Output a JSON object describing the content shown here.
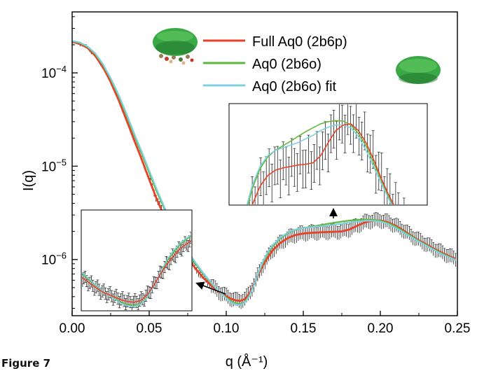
{
  "figure_label": "Figure 7",
  "colors": {
    "full": "#e8412a",
    "aq0": "#5fb83e",
    "fit": "#7fcfe0",
    "data": "#222222",
    "axis": "#000000",
    "protein_green": "#39a845",
    "protein_dark": "#1e6b26"
  },
  "icons": [
    "protein-complex-icon",
    "protein-ring-icon"
  ],
  "chart_data": {
    "type": "line",
    "xlabel": "q (Å⁻¹)",
    "ylabel": "I(q)",
    "xlim": [
      0,
      0.25
    ],
    "ylim": [
      2.5e-07,
      0.00045
    ],
    "yscale": "log",
    "x_ticks": [
      0,
      0.05,
      0.1,
      0.15,
      0.2,
      0.25
    ],
    "x_tick_labels": [
      "0.00",
      "0.05",
      "0.10",
      "0.15",
      "0.20",
      "0.25"
    ],
    "y_ticks": [
      1e-06,
      1e-05,
      0.0001
    ],
    "y_tick_labels": [
      "10−6",
      "10−5",
      "10−4"
    ],
    "legend": {
      "placement": "top-right",
      "entries": [
        "Full Aq0 (2b6p)",
        "Aq0 (2b6o)",
        "Aq0 (2b6o) fit"
      ]
    },
    "series": [
      {
        "name": "Full Aq0 (2b6p)",
        "color": "#e8412a",
        "x": [
          0,
          0.005,
          0.01,
          0.015,
          0.02,
          0.025,
          0.03,
          0.035,
          0.04,
          0.045,
          0.05,
          0.055,
          0.06,
          0.065,
          0.07,
          0.075,
          0.08,
          0.085,
          0.09,
          0.095,
          0.1,
          0.103,
          0.106,
          0.109,
          0.112,
          0.115,
          0.118,
          0.121,
          0.124,
          0.127,
          0.13,
          0.135,
          0.14,
          0.145,
          0.15,
          0.155,
          0.16,
          0.165,
          0.17,
          0.175,
          0.18,
          0.185,
          0.19,
          0.195,
          0.2,
          0.205,
          0.21,
          0.215,
          0.22,
          0.225,
          0.23,
          0.235,
          0.24,
          0.245,
          0.25
        ],
        "y": [
          0.000215,
          0.000205,
          0.000185,
          0.000152,
          0.000115,
          8e-05,
          5.2e-05,
          3.2e-05,
          1.95e-05,
          1.2e-05,
          7.2e-06,
          4.4e-06,
          2.85e-06,
          1.95e-06,
          1.4e-06,
          1.05e-06,
          8e-07,
          6.4e-07,
          5.3e-07,
          4.5e-07,
          4.05e-07,
          3.8e-07,
          3.65e-07,
          3.6e-07,
          3.75e-07,
          4.3e-07,
          5.4e-07,
          7e-07,
          8.8e-07,
          1.05e-06,
          1.25e-06,
          1.5e-06,
          1.7e-06,
          1.83e-06,
          1.9e-06,
          1.93e-06,
          1.95e-06,
          1.97e-06,
          1.98e-06,
          2e-06,
          2.1e-06,
          2.3e-06,
          2.5e-06,
          2.6e-06,
          2.62e-06,
          2.5e-06,
          2.3e-06,
          2.05e-06,
          1.8e-06,
          1.6e-06,
          1.45e-06,
          1.3e-06,
          1.18e-06,
          1.08e-06,
          1e-06
        ]
      },
      {
        "name": "Aq0 (2b6o)",
        "color": "#5fb83e",
        "x": [
          0,
          0.005,
          0.01,
          0.015,
          0.02,
          0.025,
          0.03,
          0.035,
          0.04,
          0.045,
          0.05,
          0.055,
          0.06,
          0.065,
          0.07,
          0.075,
          0.08,
          0.085,
          0.09,
          0.095,
          0.1,
          0.103,
          0.106,
          0.109,
          0.112,
          0.115,
          0.118,
          0.121,
          0.124,
          0.127,
          0.13,
          0.135,
          0.14,
          0.145,
          0.15,
          0.155,
          0.16,
          0.165,
          0.17,
          0.175,
          0.18,
          0.185,
          0.19,
          0.195,
          0.2,
          0.205,
          0.21,
          0.215,
          0.22,
          0.225,
          0.23,
          0.235,
          0.24,
          0.245,
          0.25
        ],
        "y": [
          0.000218,
          0.00021,
          0.00019,
          0.00016,
          0.000122,
          8.6e-05,
          5.7e-05,
          3.6e-05,
          2.2e-05,
          1.38e-05,
          8.5e-06,
          5.3e-06,
          3.45e-06,
          2.35e-06,
          1.65e-06,
          1.2e-06,
          9e-07,
          7e-07,
          5.6e-07,
          4.6e-07,
          3.9e-07,
          3.6e-07,
          3.4e-07,
          3.35e-07,
          3.5e-07,
          4.1e-07,
          5.3e-07,
          7.2e-07,
          9.4e-07,
          1.15e-06,
          1.38e-06,
          1.68e-06,
          1.92e-06,
          2.08e-06,
          2.18e-06,
          2.25e-06,
          2.32e-06,
          2.4e-06,
          2.48e-06,
          2.55e-06,
          2.62e-06,
          2.66e-06,
          2.68e-06,
          2.67e-06,
          2.6e-06,
          2.45e-06,
          2.25e-06,
          2e-06,
          1.78e-06,
          1.58e-06,
          1.42e-06,
          1.28e-06,
          1.16e-06,
          1.06e-06,
          9.8e-07
        ]
      },
      {
        "name": "Aq0 (2b6o) fit",
        "color": "#7fcfe0",
        "x": [
          0,
          0.005,
          0.01,
          0.015,
          0.02,
          0.025,
          0.03,
          0.035,
          0.04,
          0.045,
          0.05,
          0.055,
          0.06,
          0.065,
          0.07,
          0.075,
          0.08,
          0.085,
          0.09,
          0.095,
          0.1,
          0.103,
          0.106,
          0.109,
          0.112,
          0.115,
          0.118,
          0.121,
          0.124,
          0.127,
          0.13,
          0.135,
          0.14,
          0.145,
          0.15,
          0.155,
          0.16,
          0.165,
          0.17,
          0.175,
          0.18,
          0.185,
          0.19,
          0.195,
          0.2,
          0.205,
          0.21,
          0.215,
          0.22,
          0.225,
          0.23,
          0.235,
          0.24,
          0.245,
          0.25
        ],
        "y": [
          0.00022,
          0.000212,
          0.000192,
          0.000162,
          0.000124,
          8.8e-05,
          5.9e-05,
          3.75e-05,
          2.3e-05,
          1.45e-05,
          9e-06,
          5.6e-06,
          3.6e-06,
          2.45e-06,
          1.72e-06,
          1.25e-06,
          9.3e-07,
          7.2e-07,
          5.7e-07,
          4.6e-07,
          3.85e-07,
          3.5e-07,
          3.3e-07,
          3.25e-07,
          3.45e-07,
          4.05e-07,
          5.3e-07,
          7.3e-07,
          9.7e-07,
          1.2e-06,
          1.42e-06,
          1.72e-06,
          1.95e-06,
          2.1e-06,
          2.18e-06,
          2.22e-06,
          2.26e-06,
          2.3e-06,
          2.36e-06,
          2.42e-06,
          2.5e-06,
          2.56e-06,
          2.6e-06,
          2.6e-06,
          2.55e-06,
          2.4e-06,
          2.18e-06,
          1.95e-06,
          1.74e-06,
          1.56e-06,
          1.4e-06,
          1.26e-06,
          1.14e-06,
          1.05e-06,
          9.7e-07
        ]
      }
    ],
    "insets": [
      {
        "position": "lower-left",
        "x_range": [
          0.085,
          0.135
        ],
        "y_range": [
          3e-07,
          3e-06
        ],
        "arrow_to": "minimum near q = 0.11"
      },
      {
        "position": "upper-right",
        "x_range": [
          0.12,
          0.25
        ],
        "y_range": [
          1.5e-06,
          3e-06
        ],
        "arrow_to": "shoulder near q = 0.15-0.22"
      }
    ]
  }
}
